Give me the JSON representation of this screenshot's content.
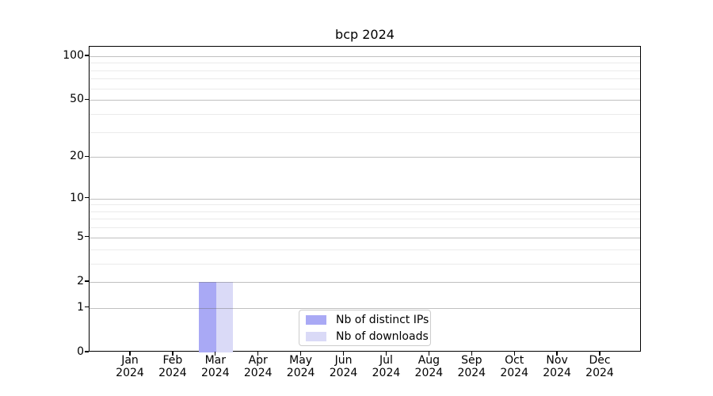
{
  "chart_data": {
    "type": "bar",
    "title": "bcp 2024",
    "categories": [
      "Jan 2024",
      "Feb 2024",
      "Mar 2024",
      "Apr 2024",
      "May 2024",
      "Jun 2024",
      "Jul 2024",
      "Aug 2024",
      "Sep 2024",
      "Oct 2024",
      "Nov 2024",
      "Dec 2024"
    ],
    "series": [
      {
        "name": "Nb of distinct IPs",
        "color": "#a9a9f5",
        "values": [
          0,
          0,
          2,
          0,
          0,
          0,
          0,
          0,
          0,
          0,
          0,
          0
        ]
      },
      {
        "name": "Nb of downloads",
        "color": "#dadaf7",
        "values": [
          0,
          0,
          2,
          0,
          0,
          0,
          0,
          0,
          0,
          0,
          0,
          0
        ]
      }
    ],
    "xlabel": "",
    "ylabel": "",
    "yscale": "log1p",
    "ylim": [
      0,
      116
    ],
    "yticks": [
      0,
      1,
      2,
      5,
      10,
      20,
      50,
      100
    ],
    "minor_yticks": [
      3,
      4,
      6,
      7,
      8,
      9,
      30,
      40,
      60,
      70,
      80,
      90
    ],
    "grid": true,
    "legend_position": "inside-lower-center"
  },
  "colors": {
    "axis": "#000000",
    "major_grid": "#c2c2c2",
    "minor_grid": "#ebebeb",
    "legend_border": "#cccccc",
    "background": "#ffffff",
    "bar_distinct_ips": "#a9a9f5",
    "bar_downloads": "#dadaf7"
  }
}
